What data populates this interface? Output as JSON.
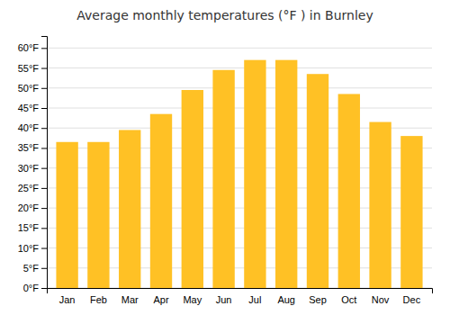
{
  "chart_data": {
    "type": "bar",
    "title": "Average monthly temperatures (°F ) in Burnley",
    "categories": [
      "Jan",
      "Feb",
      "Mar",
      "Apr",
      "May",
      "Jun",
      "Jul",
      "Aug",
      "Sep",
      "Oct",
      "Nov",
      "Dec"
    ],
    "values": [
      36.5,
      36.5,
      39.5,
      43.5,
      49.5,
      54.5,
      57.0,
      57.0,
      53.5,
      48.5,
      41.5,
      38.0
    ],
    "color": "#FFC125",
    "ylim": [
      0,
      63
    ],
    "yticks": [
      {
        "value": 0,
        "label": "0°F"
      },
      {
        "value": 5,
        "label": "5°F"
      },
      {
        "value": 10,
        "label": "10°F"
      },
      {
        "value": 15,
        "label": "15°F"
      },
      {
        "value": 20,
        "label": "20°F"
      },
      {
        "value": 25,
        "label": "25°F"
      },
      {
        "value": 30,
        "label": "30°F"
      },
      {
        "value": 35,
        "label": "35°F"
      },
      {
        "value": 40,
        "label": "40°F"
      },
      {
        "value": 45,
        "label": "45°F"
      },
      {
        "value": 50,
        "label": "50°F"
      },
      {
        "value": 55,
        "label": "55°F"
      },
      {
        "value": 60,
        "label": "60°F"
      }
    ],
    "grid": true
  }
}
